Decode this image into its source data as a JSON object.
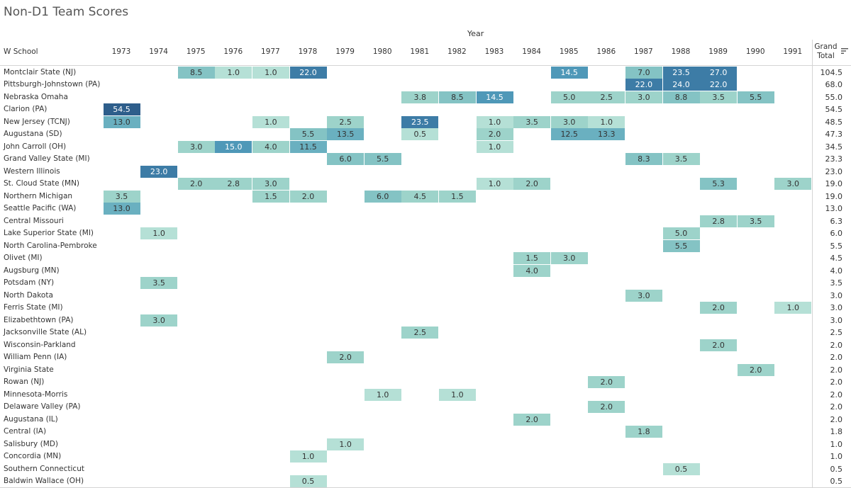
{
  "title": "Non-D1 Team Scores",
  "header": {
    "year_label": "Year",
    "row_header": "W School",
    "grand_total_label": "Grand Total",
    "sort_icon": "sort-descending-icon"
  },
  "colors": {
    "scale": [
      "#b5e0d6",
      "#9dd3ca",
      "#84c3c4",
      "#6ab0c0",
      "#4f98b8",
      "#3d7ca6",
      "#2e5e8b"
    ],
    "dark_text": "#333333",
    "light_text": "#ffffff"
  },
  "chart_data": {
    "type": "heatmap",
    "title": "Non-D1 Team Scores",
    "xlabel": "Year",
    "ylabel": "W School",
    "x": [
      "1973",
      "1974",
      "1975",
      "1976",
      "1977",
      "1978",
      "1979",
      "1980",
      "1981",
      "1982",
      "1983",
      "1984",
      "1985",
      "1986",
      "1987",
      "1988",
      "1989",
      "1990",
      "1991"
    ],
    "rows": [
      {
        "label": "Montclair State (NJ)",
        "total": "104.5",
        "values": [
          null,
          null,
          "8.5",
          "1.0",
          "1.0",
          "22.0",
          null,
          null,
          null,
          null,
          null,
          null,
          "14.5",
          null,
          "7.0",
          "23.5",
          "27.0",
          null,
          null
        ]
      },
      {
        "label": "Pittsburgh-Johnstown (PA)",
        "total": "68.0",
        "values": [
          null,
          null,
          null,
          null,
          null,
          null,
          null,
          null,
          null,
          null,
          null,
          null,
          null,
          null,
          "22.0",
          "24.0",
          "22.0",
          null,
          null
        ]
      },
      {
        "label": "Nebraska Omaha",
        "total": "55.0",
        "values": [
          null,
          null,
          null,
          null,
          null,
          null,
          null,
          null,
          "3.8",
          "8.5",
          "14.5",
          null,
          "5.0",
          "2.5",
          "3.0",
          "8.8",
          "3.5",
          "5.5",
          null
        ]
      },
      {
        "label": "Clarion (PA)",
        "total": "54.5",
        "values": [
          "54.5",
          null,
          null,
          null,
          null,
          null,
          null,
          null,
          null,
          null,
          null,
          null,
          null,
          null,
          null,
          null,
          null,
          null,
          null
        ]
      },
      {
        "label": "New Jersey (TCNJ)",
        "total": "48.5",
        "values": [
          "13.0",
          null,
          null,
          null,
          "1.0",
          null,
          "2.5",
          null,
          "23.5",
          null,
          "1.0",
          "3.5",
          "3.0",
          "1.0",
          null,
          null,
          null,
          null,
          null
        ]
      },
      {
        "label": "Augustana (SD)",
        "total": "47.3",
        "values": [
          null,
          null,
          null,
          null,
          null,
          "5.5",
          "13.5",
          null,
          "0.5",
          null,
          "2.0",
          null,
          "12.5",
          "13.3",
          null,
          null,
          null,
          null,
          null
        ]
      },
      {
        "label": "John Carroll (OH)",
        "total": "34.5",
        "values": [
          null,
          null,
          "3.0",
          "15.0",
          "4.0",
          "11.5",
          null,
          null,
          null,
          null,
          "1.0",
          null,
          null,
          null,
          null,
          null,
          null,
          null,
          null
        ]
      },
      {
        "label": "Grand Valley State (MI)",
        "total": "23.3",
        "values": [
          null,
          null,
          null,
          null,
          null,
          null,
          "6.0",
          "5.5",
          null,
          null,
          null,
          null,
          null,
          null,
          "8.3",
          "3.5",
          null,
          null,
          null
        ]
      },
      {
        "label": "Western Illinois",
        "total": "23.0",
        "values": [
          null,
          "23.0",
          null,
          null,
          null,
          null,
          null,
          null,
          null,
          null,
          null,
          null,
          null,
          null,
          null,
          null,
          null,
          null,
          null
        ]
      },
      {
        "label": "St. Cloud State (MN)",
        "total": "19.0",
        "values": [
          null,
          null,
          "2.0",
          "2.8",
          "3.0",
          null,
          null,
          null,
          null,
          null,
          "1.0",
          "2.0",
          null,
          null,
          null,
          null,
          "5.3",
          null,
          "3.0"
        ]
      },
      {
        "label": "Northern Michigan",
        "total": "19.0",
        "values": [
          "3.5",
          null,
          null,
          null,
          "1.5",
          "2.0",
          null,
          "6.0",
          "4.5",
          "1.5",
          null,
          null,
          null,
          null,
          null,
          null,
          null,
          null,
          null
        ]
      },
      {
        "label": "Seattle Pacific (WA)",
        "total": "13.0",
        "values": [
          "13.0",
          null,
          null,
          null,
          null,
          null,
          null,
          null,
          null,
          null,
          null,
          null,
          null,
          null,
          null,
          null,
          null,
          null,
          null
        ]
      },
      {
        "label": "Central Missouri",
        "total": "6.3",
        "values": [
          null,
          null,
          null,
          null,
          null,
          null,
          null,
          null,
          null,
          null,
          null,
          null,
          null,
          null,
          null,
          null,
          "2.8",
          "3.5",
          null
        ]
      },
      {
        "label": "Lake Superior State (MI)",
        "total": "6.0",
        "values": [
          null,
          "1.0",
          null,
          null,
          null,
          null,
          null,
          null,
          null,
          null,
          null,
          null,
          null,
          null,
          null,
          "5.0",
          null,
          null,
          null
        ]
      },
      {
        "label": "North Carolina-Pembroke",
        "total": "5.5",
        "values": [
          null,
          null,
          null,
          null,
          null,
          null,
          null,
          null,
          null,
          null,
          null,
          null,
          null,
          null,
          null,
          "5.5",
          null,
          null,
          null
        ]
      },
      {
        "label": "Olivet (MI)",
        "total": "4.5",
        "values": [
          null,
          null,
          null,
          null,
          null,
          null,
          null,
          null,
          null,
          null,
          null,
          "1.5",
          "3.0",
          null,
          null,
          null,
          null,
          null,
          null
        ]
      },
      {
        "label": "Augsburg (MN)",
        "total": "4.0",
        "values": [
          null,
          null,
          null,
          null,
          null,
          null,
          null,
          null,
          null,
          null,
          null,
          "4.0",
          null,
          null,
          null,
          null,
          null,
          null,
          null
        ]
      },
      {
        "label": "Potsdam (NY)",
        "total": "3.5",
        "values": [
          null,
          "3.5",
          null,
          null,
          null,
          null,
          null,
          null,
          null,
          null,
          null,
          null,
          null,
          null,
          null,
          null,
          null,
          null,
          null
        ]
      },
      {
        "label": "North Dakota",
        "total": "3.0",
        "values": [
          null,
          null,
          null,
          null,
          null,
          null,
          null,
          null,
          null,
          null,
          null,
          null,
          null,
          null,
          "3.0",
          null,
          null,
          null,
          null
        ]
      },
      {
        "label": "Ferris State (MI)",
        "total": "3.0",
        "values": [
          null,
          null,
          null,
          null,
          null,
          null,
          null,
          null,
          null,
          null,
          null,
          null,
          null,
          null,
          null,
          null,
          "2.0",
          null,
          "1.0"
        ]
      },
      {
        "label": "Elizabethtown (PA)",
        "total": "3.0",
        "values": [
          null,
          "3.0",
          null,
          null,
          null,
          null,
          null,
          null,
          null,
          null,
          null,
          null,
          null,
          null,
          null,
          null,
          null,
          null,
          null
        ]
      },
      {
        "label": "Jacksonville State (AL)",
        "total": "2.5",
        "values": [
          null,
          null,
          null,
          null,
          null,
          null,
          null,
          null,
          "2.5",
          null,
          null,
          null,
          null,
          null,
          null,
          null,
          null,
          null,
          null
        ]
      },
      {
        "label": "Wisconsin-Parkland",
        "total": "2.0",
        "values": [
          null,
          null,
          null,
          null,
          null,
          null,
          null,
          null,
          null,
          null,
          null,
          null,
          null,
          null,
          null,
          null,
          "2.0",
          null,
          null
        ]
      },
      {
        "label": "William Penn (IA)",
        "total": "2.0",
        "values": [
          null,
          null,
          null,
          null,
          null,
          null,
          "2.0",
          null,
          null,
          null,
          null,
          null,
          null,
          null,
          null,
          null,
          null,
          null,
          null
        ]
      },
      {
        "label": "Virginia State",
        "total": "2.0",
        "values": [
          null,
          null,
          null,
          null,
          null,
          null,
          null,
          null,
          null,
          null,
          null,
          null,
          null,
          null,
          null,
          null,
          null,
          "2.0",
          null
        ]
      },
      {
        "label": "Rowan (NJ)",
        "total": "2.0",
        "values": [
          null,
          null,
          null,
          null,
          null,
          null,
          null,
          null,
          null,
          null,
          null,
          null,
          null,
          "2.0",
          null,
          null,
          null,
          null,
          null
        ]
      },
      {
        "label": "Minnesota-Morris",
        "total": "2.0",
        "values": [
          null,
          null,
          null,
          null,
          null,
          null,
          null,
          "1.0",
          null,
          "1.0",
          null,
          null,
          null,
          null,
          null,
          null,
          null,
          null,
          null
        ]
      },
      {
        "label": "Delaware Valley (PA)",
        "total": "2.0",
        "values": [
          null,
          null,
          null,
          null,
          null,
          null,
          null,
          null,
          null,
          null,
          null,
          null,
          null,
          "2.0",
          null,
          null,
          null,
          null,
          null
        ]
      },
      {
        "label": "Augustana (IL)",
        "total": "2.0",
        "values": [
          null,
          null,
          null,
          null,
          null,
          null,
          null,
          null,
          null,
          null,
          null,
          "2.0",
          null,
          null,
          null,
          null,
          null,
          null,
          null
        ]
      },
      {
        "label": "Central (IA)",
        "total": "1.8",
        "values": [
          null,
          null,
          null,
          null,
          null,
          null,
          null,
          null,
          null,
          null,
          null,
          null,
          null,
          null,
          "1.8",
          null,
          null,
          null,
          null
        ]
      },
      {
        "label": "Salisbury (MD)",
        "total": "1.0",
        "values": [
          null,
          null,
          null,
          null,
          null,
          null,
          "1.0",
          null,
          null,
          null,
          null,
          null,
          null,
          null,
          null,
          null,
          null,
          null,
          null
        ]
      },
      {
        "label": "Concordia (MN)",
        "total": "1.0",
        "values": [
          null,
          null,
          null,
          null,
          null,
          "1.0",
          null,
          null,
          null,
          null,
          null,
          null,
          null,
          null,
          null,
          null,
          null,
          null,
          null
        ]
      },
      {
        "label": "Southern Connecticut",
        "total": "0.5",
        "values": [
          null,
          null,
          null,
          null,
          null,
          null,
          null,
          null,
          null,
          null,
          null,
          null,
          null,
          null,
          null,
          "0.5",
          null,
          null,
          null
        ]
      },
      {
        "label": "Baldwin Wallace (OH)",
        "total": "0.5",
        "values": [
          null,
          null,
          null,
          null,
          null,
          "0.5",
          null,
          null,
          null,
          null,
          null,
          null,
          null,
          null,
          null,
          null,
          null,
          null,
          null
        ]
      }
    ]
  }
}
